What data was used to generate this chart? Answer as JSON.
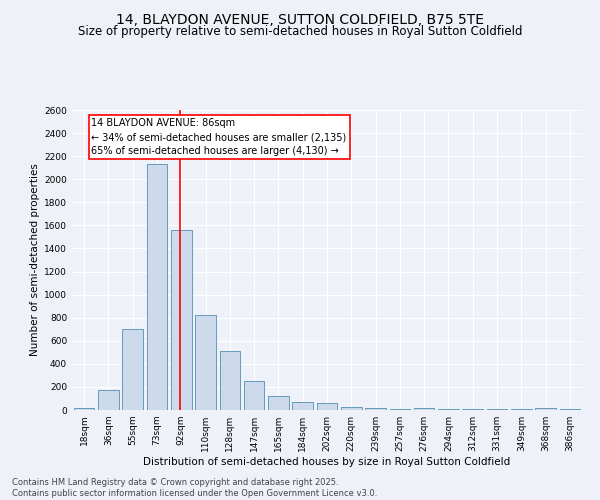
{
  "title": "14, BLAYDON AVENUE, SUTTON COLDFIELD, B75 5TE",
  "subtitle": "Size of property relative to semi-detached houses in Royal Sutton Coldfield",
  "xlabel": "Distribution of semi-detached houses by size in Royal Sutton Coldfield",
  "ylabel": "Number of semi-detached properties",
  "categories": [
    "18sqm",
    "36sqm",
    "55sqm",
    "73sqm",
    "92sqm",
    "110sqm",
    "128sqm",
    "147sqm",
    "165sqm",
    "184sqm",
    "202sqm",
    "220sqm",
    "239sqm",
    "257sqm",
    "276sqm",
    "294sqm",
    "312sqm",
    "331sqm",
    "349sqm",
    "368sqm",
    "386sqm"
  ],
  "values": [
    20,
    175,
    700,
    2130,
    1560,
    825,
    510,
    250,
    125,
    70,
    65,
    30,
    15,
    5,
    15,
    5,
    5,
    5,
    5,
    20,
    5
  ],
  "bar_color": "#ccdaec",
  "bar_edge_color": "#6699bb",
  "vline_color": "red",
  "vline_xindex": 3.93,
  "annotation_title": "14 BLAYDON AVENUE: 86sqm",
  "annotation_line1": "← 34% of semi-detached houses are smaller (2,135)",
  "annotation_line2": "65% of semi-detached houses are larger (4,130) →",
  "annotation_box_color": "white",
  "annotation_box_edge": "red",
  "ylim": [
    0,
    2600
  ],
  "yticks": [
    0,
    200,
    400,
    600,
    800,
    1000,
    1200,
    1400,
    1600,
    1800,
    2000,
    2200,
    2400,
    2600
  ],
  "bg_color": "#eef2f8",
  "grid_color": "white",
  "footer1": "Contains HM Land Registry data © Crown copyright and database right 2025.",
  "footer2": "Contains public sector information licensed under the Open Government Licence v3.0.",
  "title_fontsize": 10,
  "subtitle_fontsize": 8.5,
  "axis_label_fontsize": 7.5,
  "tick_fontsize": 6.5,
  "annotation_fontsize": 7,
  "footer_fontsize": 6
}
